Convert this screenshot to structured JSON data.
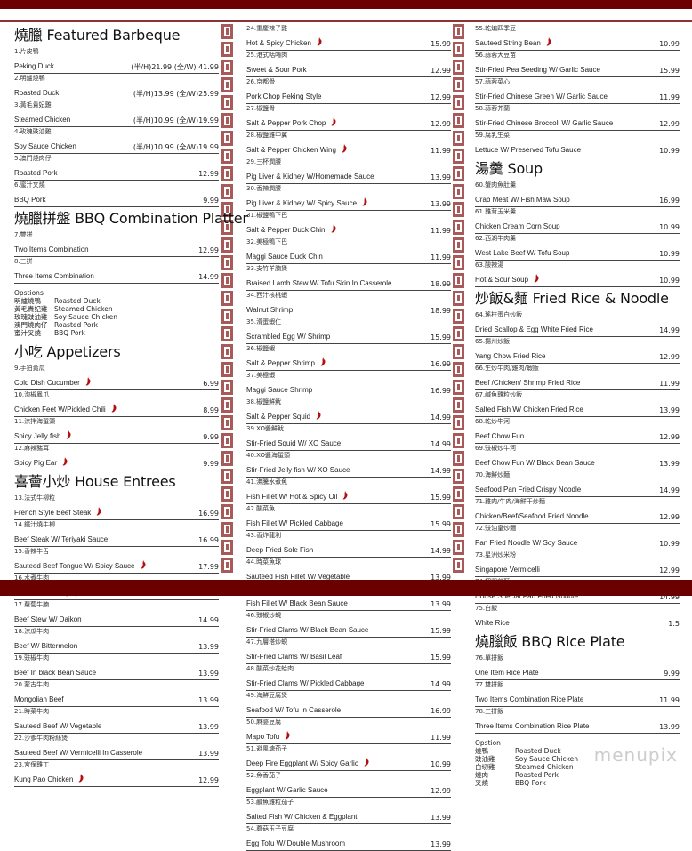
{
  "colors": {
    "band": "#6b0000",
    "border_pattern": "#a85a5a",
    "chili": "#b01010"
  },
  "watermark": "menupix",
  "columns": [
    [
      {
        "type": "section",
        "title": "燒臘 Featured Barbeque"
      },
      {
        "type": "item",
        "zh": "1.片皮鴨",
        "en": "Peking Duck",
        "price": "(半/H)21.99 (全/W) 41.99"
      },
      {
        "type": "item",
        "zh": "2.明爐燒鴨",
        "en": "Roasted Duck",
        "price": "(半/H)13.99 (全/W)25.99"
      },
      {
        "type": "item",
        "zh": "3.黃毛貴妃雞",
        "en": "Steamed Chicken",
        "price": "(半/H)10.99 (全/W)19.99"
      },
      {
        "type": "item",
        "zh": "4.玫瑰豉油雞",
        "en": "Soy Sauce Chicken",
        "price": "(半/H)10.99 (全/W)19.99"
      },
      {
        "type": "item",
        "zh": "5.澳門燒肉仔",
        "en": "Roasted Pork",
        "price": "12.99"
      },
      {
        "type": "item",
        "zh": "6.蜜汁叉燒",
        "en": "BBQ Pork",
        "price": "9.99"
      },
      {
        "type": "section",
        "title": "燒臘拼盤 BBQ Combination Platter"
      },
      {
        "type": "item",
        "zh": "7.雙拼",
        "en": "Two Items Combination",
        "price": "12.99"
      },
      {
        "type": "item",
        "zh": "8.三拼",
        "en": "Three Items Combination",
        "price": "14.99"
      },
      {
        "type": "options",
        "title": "Opstions",
        "rows": [
          [
            "明爐燒鴨",
            "Roasted Duck"
          ],
          [
            "黃毛貴妃雞",
            "Steamed Chicken"
          ],
          [
            "玫瑰豉油雞",
            "Soy Sauce Chicken"
          ],
          [
            "澳門燒肉仔",
            "Roasted Pork"
          ],
          [
            "蜜汁叉燒",
            "BBQ Pork"
          ]
        ]
      },
      {
        "type": "section",
        "title": "小吃 Appetizers"
      },
      {
        "type": "item",
        "zh": "9.手拍黃瓜",
        "en": "Cold Dish Cucumber",
        "price": "6.99",
        "spicy": true
      },
      {
        "type": "item",
        "zh": "10.泡椒鳳爪",
        "en": "Chicken Feet W/Pickled Chili",
        "price": "8.99",
        "spicy": true
      },
      {
        "type": "item",
        "zh": "11.涼拌海蜇頭",
        "en": "Spicy Jelly fish",
        "price": "9.99",
        "spicy": true
      },
      {
        "type": "item",
        "zh": "12.麻辣豬耳",
        "en": "Spicy Pig Ear",
        "price": "9.99",
        "spicy": true
      },
      {
        "type": "section",
        "title": "喜薈小炒 House Entrees"
      },
      {
        "type": "item",
        "zh": "13.法式牛柳粒",
        "en": "French Style Beef Steak",
        "price": "16.99",
        "spicy": true
      },
      {
        "type": "item",
        "zh": "14.鐵汁燒牛柳",
        "en": "Beef Steak W/ Teriyaki Sauce",
        "price": "16.99"
      },
      {
        "type": "item",
        "zh": "15.香辣牛舌",
        "en": "Sauteed Beef Tongue W/ Spicy Sauce",
        "price": "17.99",
        "spicy": true
      },
      {
        "type": "item",
        "zh": "16.水煮牛肉",
        "en": "Beef W/ Hot & Spicy Oil",
        "price": "15.99",
        "spicy": true
      },
      {
        "type": "item",
        "zh": "17.蘿蔔牛腩",
        "en": "Beef Stew W/ Daikon",
        "price": "14.99"
      },
      {
        "type": "item",
        "zh": "18.涼瓜牛肉",
        "en": "Beef W/ Bittermelon",
        "price": "13.99"
      },
      {
        "type": "item",
        "zh": "19.豉椒牛肉",
        "en": "Beef In black Bean Sauce",
        "price": "13.99"
      },
      {
        "type": "item",
        "zh": "20.蒙古牛肉",
        "en": "Mongolian Beef",
        "price": "13.99"
      },
      {
        "type": "item",
        "zh": "21.時菜牛肉",
        "en": "Sauteed Beef W/ Vegetable",
        "price": "13.99"
      },
      {
        "type": "item",
        "zh": "22.沙爹牛肉粉絲煲",
        "en": "Sauteed Beef W/ Vermicelli In Casserole",
        "price": "13.99"
      },
      {
        "type": "item",
        "zh": "23.宮保雞丁",
        "en": "Kung Pao Chicken",
        "price": "12.99",
        "spicy": true
      }
    ],
    [
      {
        "type": "item",
        "zh": "24.重慶辣子雞",
        "en": "Hot & Spicy Chicken",
        "price": "15.99",
        "spicy": true
      },
      {
        "type": "item",
        "zh": "25.港式咕嚕肉",
        "en": "Sweet & Sour Pork",
        "price": "12.99"
      },
      {
        "type": "item",
        "zh": "26.京都骨",
        "en": "Pork Chop Peking Style",
        "price": "12.99"
      },
      {
        "type": "item",
        "zh": "27.椒鹽骨",
        "en": "Salt & Pepper Pork Chop",
        "price": "12.99",
        "spicy": true
      },
      {
        "type": "item",
        "zh": "28.椒鹽雞中翼",
        "en": "Salt & Pepper Chicken Wing",
        "price": "11.99",
        "spicy": true
      },
      {
        "type": "item",
        "zh": "29.三杯潤腰",
        "en": "Pig Liver & Kidney W/Homemade Sauce",
        "price": "13.99"
      },
      {
        "type": "item",
        "zh": "30.香辣潤腰",
        "en": "Pig Liver & Kidney W/ Spicy Sauce",
        "price": "13.99",
        "spicy": true
      },
      {
        "type": "item",
        "zh": "31.椒鹽鴨下巴",
        "en": "Salt & Pepper Duck Chin",
        "price": "11.99",
        "spicy": true
      },
      {
        "type": "item",
        "zh": "32.美極鴨下巴",
        "en": "Maggi Sauce Duck Chin",
        "price": "11.99"
      },
      {
        "type": "item",
        "zh": "33.支竹羊腩煲",
        "en": "Braised Lamb Stew W/ Tofu Skin In Casserole",
        "price": "18.99"
      },
      {
        "type": "item",
        "zh": "34.西汁核桃蝦",
        "en": "Walnut Shrimp",
        "price": "18.99"
      },
      {
        "type": "item",
        "zh": "35.滑蛋蝦仁",
        "en": "Scrambled Egg W/ Shrimp",
        "price": "15.99"
      },
      {
        "type": "item",
        "zh": "36.椒鹽蝦",
        "en": "Salt & Pepper Shrimp",
        "price": "16.99",
        "spicy": true
      },
      {
        "type": "item",
        "zh": "37.美極蝦",
        "en": "Maggi Sauce Shrimp",
        "price": "16.99"
      },
      {
        "type": "item",
        "zh": "38.椒鹽鮮魷",
        "en": "Salt & Pepper Squid",
        "price": "14.99",
        "spicy": true
      },
      {
        "type": "item",
        "zh": "39.XO醬鮮魷",
        "en": "Stir-Fried Squid W/ XO Sauce",
        "price": "14.99"
      },
      {
        "type": "item",
        "zh": "40.XO醬海蜇頭",
        "en": "Stir-Fried Jelly fish W/ XO Sauce",
        "price": "14.99"
      },
      {
        "type": "item",
        "zh": "41.沸騰水煮魚",
        "en": "Fish Fillet W/ Hot & Spicy Oil",
        "price": "15.99",
        "spicy": true
      },
      {
        "type": "item",
        "zh": "42.酸菜魚",
        "en": "Fish Fillet W/ Pickled Cabbage",
        "price": "15.99"
      },
      {
        "type": "item",
        "zh": "43.香炸龍利",
        "en": "Deep Fried Sole Fish",
        "price": "14.99"
      },
      {
        "type": "item",
        "zh": "44.時菜魚球",
        "en": "Sauteed Fish Fillet W/ Vegetable",
        "price": "13.99"
      },
      {
        "type": "item",
        "zh": "45.豉椒魚球",
        "en": "Fish Fillet W/ Black Bean Sauce",
        "price": "13.99"
      },
      {
        "type": "item",
        "zh": "46.豉椒炒蜆",
        "en": "Stir-Fried Clams W/ Black Bean Sauce",
        "price": "15.99"
      },
      {
        "type": "item",
        "zh": "47.九層塔炒蜆",
        "en": "Stir-Fried Clams W/ Basil Leaf",
        "price": "15.99"
      },
      {
        "type": "item",
        "zh": "48.酸菜炒花蛤肉",
        "en": "Stir-Fried Clams W/ Pickled Cabbage",
        "price": "14.99"
      },
      {
        "type": "item",
        "zh": "49.海鮮豆腐煲",
        "en": "Seafood W/ Tofu In Casserole",
        "price": "16.99"
      },
      {
        "type": "item",
        "zh": "50.麻婆豆腐",
        "en": "Mapo Tofu",
        "price": "11.99",
        "spicy": true
      },
      {
        "type": "item",
        "zh": "51.避風塘茄子",
        "en": "Deep Fire Eggplant W/ Spicy Garlic",
        "price": "10.99",
        "spicy": true
      },
      {
        "type": "item",
        "zh": "52.魚香茄子",
        "en": "Eggplant W/ Garlic Sauce",
        "price": "12.99"
      },
      {
        "type": "item",
        "zh": "53.鹹魚雞粒茄子",
        "en": "Salted Fish W/ Chicken & Eggplant",
        "price": "13.99"
      },
      {
        "type": "item",
        "zh": "54.蘑菇玉子豆腐",
        "en": "Egg Tofu W/ Double Mushroom",
        "price": "13.99"
      }
    ],
    [
      {
        "type": "item",
        "zh": "55.乾煸四季豆",
        "en": "Sauteed String Bean",
        "price": "10.99",
        "spicy": true
      },
      {
        "type": "item",
        "zh": "56.蒜蓉大豆苗",
        "en": "Stir-Fried Pea Seeding W/ Garlic Sauce",
        "price": "15.99"
      },
      {
        "type": "item",
        "zh": "57.蒜蓉菜心",
        "en": "Stir-Fried Chinese Green W/ Garlic Sauce",
        "price": "11.99"
      },
      {
        "type": "item",
        "zh": "58.蒜蓉芥蘭",
        "en": "Stir-Fried Chinese Broccoli W/ Garlic Sauce",
        "price": "12.99"
      },
      {
        "type": "item",
        "zh": "59.腐乳生菜",
        "en": "Lettuce W/ Preserved Tofu Sauce",
        "price": "10.99"
      },
      {
        "type": "section",
        "title": "湯羹 Soup"
      },
      {
        "type": "item",
        "zh": "60.蟹肉魚肚羹",
        "en": "Crab Meat W/ Fish Maw Soup",
        "price": "16.99"
      },
      {
        "type": "item",
        "zh": "61.雞茸玉米羹",
        "en": "Chicken Cream Corn Soup",
        "price": "10.99"
      },
      {
        "type": "item",
        "zh": "62.西湖牛肉羹",
        "en": "West Lake Beef W/ Tofu Soup",
        "price": "10.99"
      },
      {
        "type": "item",
        "zh": "63.酸辣湯",
        "en": "Hot & Sour Soup",
        "price": "10.99",
        "spicy": true
      },
      {
        "type": "section",
        "title": "炒飯&麵 Fried Rice & Noodle"
      },
      {
        "type": "item",
        "zh": "64.瑤柱蛋白炒飯",
        "en": "Dried Scallop & Egg White Fried Rice",
        "price": "14.99"
      },
      {
        "type": "item",
        "zh": "65.揚州炒飯",
        "en": "Yang Chow Fried Rice",
        "price": "12.99"
      },
      {
        "type": "item",
        "zh": "66.生炒牛肉/雞肉/蝦飯",
        "en": "Beef /Chicken/ Shrimp Fried Rice",
        "price": "11.99"
      },
      {
        "type": "item",
        "zh": "67.鹹魚雞粒炒飯",
        "en": "Salted Fish W/ Chicken Fried Rice",
        "price": "13.99"
      },
      {
        "type": "item",
        "zh": "68.乾炒牛河",
        "en": "Beef Chow Fun",
        "price": "12.99"
      },
      {
        "type": "item",
        "zh": "69.豉椒炒牛河",
        "en": "Beef Chow Fun W/ Black Bean Sauce",
        "price": "13.99"
      },
      {
        "type": "item",
        "zh": "70.海鮮炒麵",
        "en": "Seafood  Pan Fried Crispy Noodle",
        "price": "14.99"
      },
      {
        "type": "item",
        "zh": "71.雞肉/牛肉/海鮮干炒麵",
        "en": "Chicken/Beef/Seafood Fried Noodle",
        "price": "12.99"
      },
      {
        "type": "item",
        "zh": "72.豉油皇炒麵",
        "en": "Pan Fried Noodle W/ Soy Sauce",
        "price": "10.99"
      },
      {
        "type": "item",
        "zh": "73.星洲炒米粉",
        "en": "Singapore Vermicelli",
        "price": "12.99"
      },
      {
        "type": "item",
        "zh": "74.招牌煎麵",
        "en": "House Special Pan Fried Noodle",
        "price": "14.99"
      },
      {
        "type": "item",
        "zh": "75.白飯",
        "en": "White Rice",
        "price": "1.5"
      },
      {
        "type": "section",
        "title": "燒臘飯 BBQ Rice Plate"
      },
      {
        "type": "item",
        "zh": "76.單拼飯",
        "en": "One Item Rice Plate",
        "price": "9.99"
      },
      {
        "type": "item",
        "zh": "77.雙拼飯",
        "en": "Two Items Combination Rice Plate",
        "price": "11.99"
      },
      {
        "type": "item",
        "zh": "78.三拼飯",
        "en": "Three Items Combination Rice Plate",
        "price": "13.99"
      },
      {
        "type": "options",
        "title": "Opstion",
        "rows": [
          [
            "燒鴨",
            "Roasted Duck"
          ],
          [
            "豉油雞",
            "Soy Sauce Chicken"
          ],
          [
            "白切雞",
            "Steamed Chicken"
          ],
          [
            "燒肉",
            "Roasted Pork"
          ],
          [
            "叉燒",
            "BBQ Pork"
          ]
        ]
      }
    ]
  ]
}
